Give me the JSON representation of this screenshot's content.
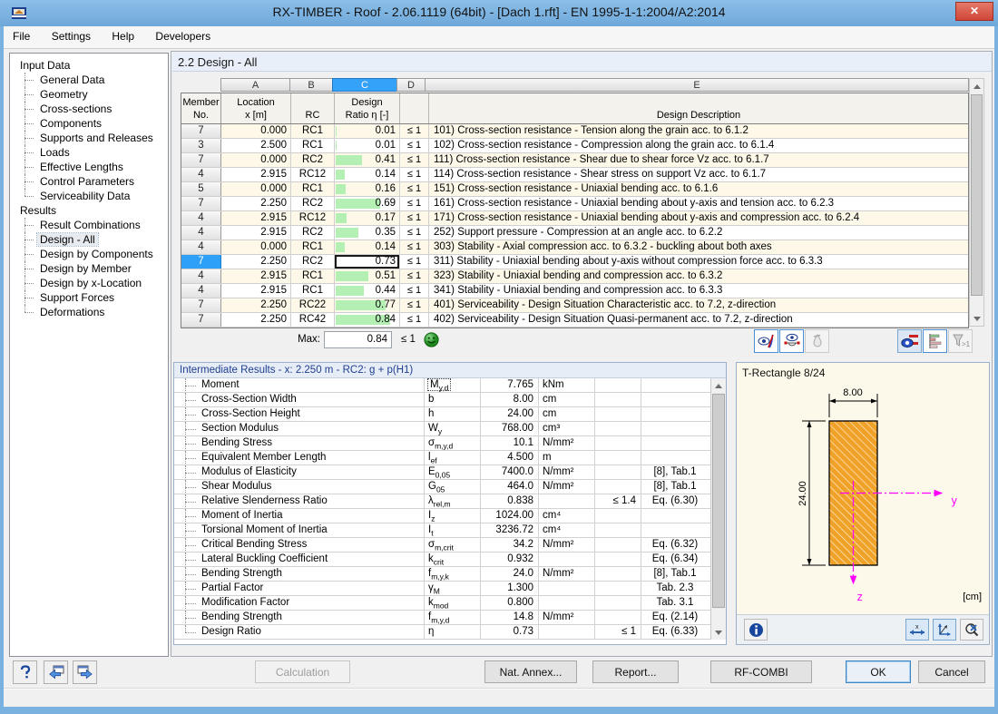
{
  "window": {
    "title": "RX-TIMBER - Roof - 2.06.1119 (64bit) - [Dach 1.rft] - EN 1995-1-1:2004/A2:2014",
    "close": "✕"
  },
  "menu": {
    "items": [
      {
        "label": "File"
      },
      {
        "label": "Settings"
      },
      {
        "label": "Help"
      },
      {
        "label": "Developers"
      }
    ]
  },
  "sidebar": {
    "items": [
      {
        "label": "Input Data",
        "level": 0
      },
      {
        "label": "General Data",
        "level": 1
      },
      {
        "label": "Geometry",
        "level": 1
      },
      {
        "label": "Cross-sections",
        "level": 1
      },
      {
        "label": "Components",
        "level": 1
      },
      {
        "label": "Supports and Releases",
        "level": 1
      },
      {
        "label": "Loads",
        "level": 1
      },
      {
        "label": "Effective Lengths",
        "level": 1
      },
      {
        "label": "Control Parameters",
        "level": 1
      },
      {
        "label": "Serviceability Data",
        "level": 1,
        "last": true
      },
      {
        "label": "Results",
        "level": 0
      },
      {
        "label": "Result Combinations",
        "level": 1
      },
      {
        "label": "Design - All",
        "level": 1,
        "selected": true
      },
      {
        "label": "Design by Components",
        "level": 1
      },
      {
        "label": "Design by Member",
        "level": 1
      },
      {
        "label": "Design by x-Location",
        "level": 1
      },
      {
        "label": "Support Forces",
        "level": 1
      },
      {
        "label": "Deformations",
        "level": 1,
        "last": true
      }
    ]
  },
  "main": {
    "section_title": "2.2 Design - All",
    "table": {
      "col_letters": {
        "a": "A",
        "b": "B",
        "c": "C",
        "d": "D",
        "e": "E"
      },
      "headers": {
        "member1": "Member",
        "member2": "No.",
        "location1": "Location",
        "location2": "x [m]",
        "rc": "RC",
        "design1": "Design",
        "design2": "Ratio η [-]",
        "desc": "Design Description"
      },
      "rows": [
        {
          "member": "7",
          "x": "0.000",
          "rc": "RC1",
          "ratio": "0.01",
          "ratio_val": 0.01,
          "limit": "≤ 1",
          "desc": "101) Cross-section resistance - Tension along the grain acc. to 6.1.2"
        },
        {
          "member": "3",
          "x": "2.500",
          "rc": "RC1",
          "ratio": "0.01",
          "ratio_val": 0.01,
          "limit": "≤ 1",
          "desc": "102) Cross-section resistance - Compression along the grain acc. to 6.1.4"
        },
        {
          "member": "7",
          "x": "0.000",
          "rc": "RC2",
          "ratio": "0.41",
          "ratio_val": 0.41,
          "limit": "≤ 1",
          "desc": "111) Cross-section resistance - Shear due to shear force Vz acc. to 6.1.7"
        },
        {
          "member": "4",
          "x": "2.915",
          "rc": "RC12",
          "ratio": "0.14",
          "ratio_val": 0.14,
          "limit": "≤ 1",
          "desc": "114) Cross-section resistance - Shear stress on support Vz acc. to 6.1.7"
        },
        {
          "member": "5",
          "x": "0.000",
          "rc": "RC1",
          "ratio": "0.16",
          "ratio_val": 0.16,
          "limit": "≤ 1",
          "desc": "151) Cross-section resistance - Uniaxial bending acc. to 6.1.6"
        },
        {
          "member": "7",
          "x": "2.250",
          "rc": "RC2",
          "ratio": "0.69",
          "ratio_val": 0.69,
          "limit": "≤ 1",
          "desc": "161) Cross-section resistance - Uniaxial bending about y-axis and tension acc. to 6.2.3"
        },
        {
          "member": "4",
          "x": "2.915",
          "rc": "RC12",
          "ratio": "0.17",
          "ratio_val": 0.17,
          "limit": "≤ 1",
          "desc": "171) Cross-section resistance - Uniaxial bending about y-axis and compression acc. to 6.2.4"
        },
        {
          "member": "4",
          "x": "2.915",
          "rc": "RC2",
          "ratio": "0.35",
          "ratio_val": 0.35,
          "limit": "≤ 1",
          "desc": "252) Support pressure - Compression at an angle acc. to 6.2.2"
        },
        {
          "member": "4",
          "x": "0.000",
          "rc": "RC1",
          "ratio": "0.14",
          "ratio_val": 0.14,
          "limit": "≤ 1",
          "desc": "303) Stability - Axial compression acc. to 6.3.2 - buckling about both axes"
        },
        {
          "member": "7",
          "x": "2.250",
          "rc": "RC2",
          "ratio": "0.73",
          "ratio_val": 0.73,
          "limit": "≤ 1",
          "desc": "311) Stability - Uniaxial bending about y-axis without compression force acc. to 6.3.3",
          "selected": true
        },
        {
          "member": "4",
          "x": "2.915",
          "rc": "RC1",
          "ratio": "0.51",
          "ratio_val": 0.51,
          "limit": "≤ 1",
          "desc": "323) Stability - Uniaxial bending and compression acc. to 6.3.2"
        },
        {
          "member": "4",
          "x": "2.915",
          "rc": "RC1",
          "ratio": "0.44",
          "ratio_val": 0.44,
          "limit": "≤ 1",
          "desc": "341) Stability - Uniaxial bending and compression acc. to 6.3.3"
        },
        {
          "member": "7",
          "x": "2.250",
          "rc": "RC22",
          "ratio": "0.77",
          "ratio_val": 0.77,
          "limit": "≤ 1",
          "desc": "401) Serviceability - Design Situation Characteristic acc. to 7.2, z-direction"
        },
        {
          "member": "7",
          "x": "2.250",
          "rc": "RC42",
          "ratio": "0.84",
          "ratio_val": 0.84,
          "limit": "≤ 1",
          "desc": "402) Serviceability - Design Situation Quasi-permanent acc. to 7.2, z-direction"
        }
      ],
      "max_label": "Max:",
      "max_value": "0.84",
      "max_limit": "≤ 1"
    },
    "result_toolbar_icons": [
      "result-diagram-icon",
      "support-view-icon",
      "drop-icon",
      "colored-relation-icon",
      "result-bars-icon",
      "filter-greater-one-icon"
    ]
  },
  "intermediate": {
    "header": "Intermediate Results  -  x: 2.250 m  -  RC2: g + p(H1)",
    "rows": [
      {
        "name": "Moment",
        "sym": "M",
        "sub": "y,d",
        "value": "7.765",
        "unit": "kNm",
        "selected": true
      },
      {
        "name": "Cross-Section Width",
        "sym": "b",
        "sub": "",
        "value": "8.00",
        "unit": "cm"
      },
      {
        "name": "Cross-Section Height",
        "sym": "h",
        "sub": "",
        "value": "24.00",
        "unit": "cm"
      },
      {
        "name": "Section Modulus",
        "sym": "W",
        "sub": "y",
        "value": "768.00",
        "unit": "cm³"
      },
      {
        "name": "Bending Stress",
        "sym": "σ",
        "sub": "m,y,d",
        "value": "10.1",
        "unit": "N/mm²"
      },
      {
        "name": "Equivalent Member Length",
        "sym": "l",
        "sub": "ef",
        "value": "4.500",
        "unit": "m"
      },
      {
        "name": "Modulus of Elasticity",
        "sym": "E",
        "sub": "0,05",
        "value": "7400.0",
        "unit": "N/mm²",
        "ref": "[8], Tab.1"
      },
      {
        "name": "Shear Modulus",
        "sym": "G",
        "sub": "05",
        "value": "464.0",
        "unit": "N/mm²",
        "ref": "[8], Tab.1"
      },
      {
        "name": "Relative Slenderness Ratio",
        "sym": "λ",
        "sub": "rel,m",
        "value": "0.838",
        "limit": "≤ 1.4",
        "ref": "Eq. (6.30)"
      },
      {
        "name": "Moment of Inertia",
        "sym": "I",
        "sub": "z",
        "value": "1024.00",
        "unit": "cm⁴"
      },
      {
        "name": "Torsional Moment of Inertia",
        "sym": "I",
        "sub": "t",
        "value": "3236.72",
        "unit": "cm⁴"
      },
      {
        "name": "Critical Bending Stress",
        "sym": "σ",
        "sub": "m,crit",
        "value": "34.2",
        "unit": "N/mm²",
        "ref": "Eq. (6.32)"
      },
      {
        "name": "Lateral Buckling Coefficient",
        "sym": "k",
        "sub": "crit",
        "value": "0.932",
        "ref": "Eq. (6.34)"
      },
      {
        "name": "Bending Strength",
        "sym": "f",
        "sub": "m,y,k",
        "value": "24.0",
        "unit": "N/mm²",
        "ref": "[8], Tab.1"
      },
      {
        "name": "Partial Factor",
        "sym": "γ",
        "sub": "M",
        "value": "1.300",
        "ref": "Tab. 2.3"
      },
      {
        "name": "Modification Factor",
        "sym": "k",
        "sub": "mod",
        "value": "0.800",
        "ref": "Tab. 3.1"
      },
      {
        "name": "Bending Strength",
        "sym": "f",
        "sub": "m,y,d",
        "value": "14.8",
        "unit": "N/mm²",
        "ref": "Eq. (2.14)"
      },
      {
        "name": "Design Ratio",
        "sym": "η",
        "sub": "",
        "value": "0.73",
        "limit": "≤ 1",
        "ref": "Eq. (6.33)",
        "last": true
      }
    ]
  },
  "graphic": {
    "title": "T-Rectangle 8/24",
    "dim_width": "8.00",
    "dim_height": "24.00",
    "axis_y": "y",
    "axis_z": "z",
    "unit": "[cm]",
    "footer_icons": [
      "info-icon",
      "dim-length-icon",
      "dim-axes-icon",
      "zoom-reset-icon"
    ]
  },
  "buttons": {
    "calculation": "Calculation",
    "nat_annex": "Nat. Annex...",
    "report": "Report...",
    "rf_combi": "RF-COMBI",
    "ok": "OK",
    "cancel": "Cancel"
  },
  "colors": {
    "titlebar_blue": "#79b1e0",
    "accent_blue": "#35a2f9",
    "bar_green": "#b4f0b4",
    "section_orange": "#f0a127",
    "axis_magenta": "#ff00ff",
    "smiley_green": "#2f9e2f",
    "row_cream": "#fdf8e8"
  }
}
